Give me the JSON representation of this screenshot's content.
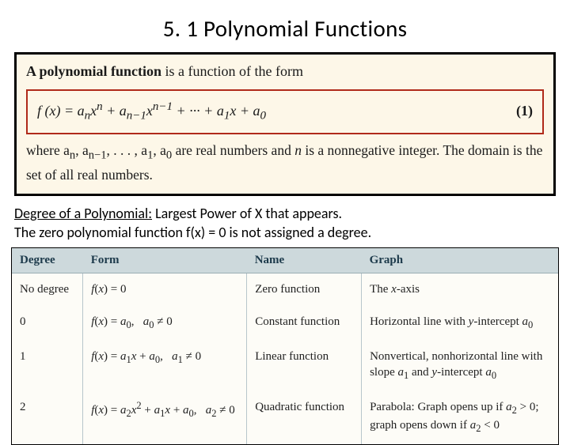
{
  "title": "5. 1 Polynomial Functions",
  "definition": {
    "intro_prefix_bold": "A polynomial function",
    "intro_rest": " is a function of the form",
    "formula_html": "f (x)  =  a<sub>n</sub>x<sup>n</sup> + a<sub>n−1</sub>x<sup>n−1</sup> + ··· + a<sub>1</sub>x + a<sub>0</sub>",
    "equation_number": "(1)",
    "where_html": "where a<sub>n</sub>, a<sub>n−1</sub>, . . . , a<sub>1</sub>, a<sub>0</sub> are real numbers and <i>n</i> is a nonnegative integer. The domain is the set of all real numbers."
  },
  "body": {
    "line1_underline": "Degree of a Polynomial:",
    "line1_rest": " Largest Power of X that appears.",
    "line2": "The zero polynomial function f(x) = 0 is not assigned a degree."
  },
  "table": {
    "headers": [
      "Degree",
      "Form",
      "Name",
      "Graph"
    ],
    "rows": [
      {
        "degree": "No degree",
        "form_html": "<span class='math'>f</span>(<span class='math'>x</span>) = 0",
        "name": "Zero function",
        "graph_html": "The <span class='math'>x</span>-axis"
      },
      {
        "degree": "0",
        "form_html": "<span class='math'>f</span>(<span class='math'>x</span>) = <span class='math'>a</span><sub>0</sub>,&nbsp;&nbsp;&nbsp;<span class='math'>a</span><sub>0</sub> ≠ 0",
        "name": "Constant function",
        "graph_html": "Horizontal line with <span class='math'>y</span>-intercept <span class='math'>a</span><sub>0</sub>"
      },
      {
        "degree": "1",
        "form_html": "<span class='math'>f</span>(<span class='math'>x</span>) = <span class='math'>a</span><sub>1</sub><span class='math'>x</span> + <span class='math'>a</span><sub>0</sub>,&nbsp;&nbsp;&nbsp;<span class='math'>a</span><sub>1</sub> ≠ 0",
        "name": "Linear function",
        "graph_html": "Nonvertical, nonhorizontal line with slope <span class='math'>a</span><sub>1</sub> and <span class='math'>y</span>-intercept <span class='math'>a</span><sub>0</sub>"
      },
      {
        "degree": "2",
        "form_html": "<span class='math'>f</span>(<span class='math'>x</span>) = <span class='math'>a</span><sub>2</sub><span class='math'>x</span><sup>2</sup> + <span class='math'>a</span><sub>1</sub><span class='math'>x</span> + <span class='math'>a</span><sub>0</sub>,&nbsp;&nbsp;&nbsp;<span class='math'>a</span><sub>2</sub> ≠ 0",
        "name": "Quadratic function",
        "graph_html": "Parabola: Graph opens up if <span class='math'>a</span><sub>2</sub> &gt; 0; graph opens down if <span class='math'>a</span><sub>2</sub> &lt; 0"
      }
    ]
  },
  "colors": {
    "definition_bg": "#fdf7e8",
    "formula_border": "#b02a1a",
    "table_header_bg": "#cdd9dc",
    "table_body_bg": "#fdfcf7",
    "table_grid": "#b7c6cb"
  }
}
